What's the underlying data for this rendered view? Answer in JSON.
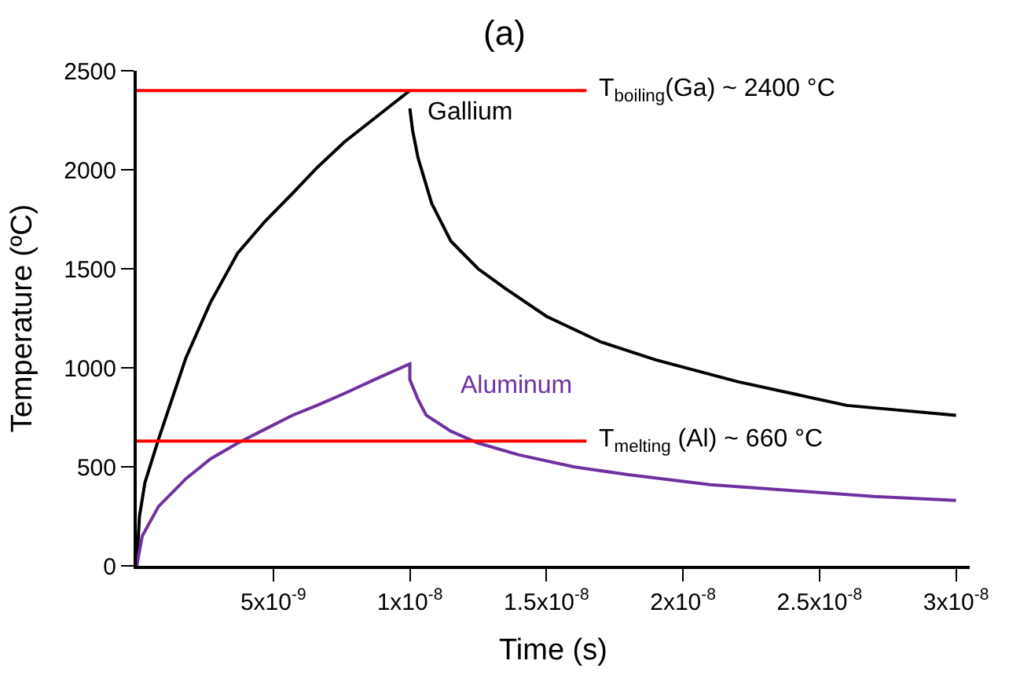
{
  "chart_data": {
    "type": "line",
    "title": "(a)",
    "xlabel": "Time (s)",
    "ylabel": "Temperature (ºC)",
    "xlim": [
      0,
      3.05e-08
    ],
    "xticks": [
      {
        "value": 5e-09,
        "label": "5x10$^{-9}$"
      },
      {
        "value": 1e-08,
        "label": "1x10$^{-8}$"
      },
      {
        "value": 1.5e-08,
        "label": "1.5x10$^{-8}$"
      },
      {
        "value": 2e-08,
        "label": "2x10$^{-8}$"
      },
      {
        "value": 2.5e-08,
        "label": "2.5x10$^{-8}$"
      },
      {
        "value": 3e-08,
        "label": "3x10$^{-8}$"
      }
    ],
    "ylim": [
      0,
      2500
    ],
    "yticks": [
      0,
      500,
      1000,
      1500,
      2000,
      2500
    ],
    "legend": false,
    "marker": "none",
    "line_style": "solid",
    "series": [
      {
        "name": "Gallium",
        "color": "#000000",
        "x": [
          0,
          1e-10,
          3e-10,
          8e-10,
          1.8e-09,
          2.7e-09,
          3.7e-09,
          4.7e-09,
          5.7e-09,
          6.6e-09,
          7.6e-09,
          8.8e-09,
          1e-08,
          null,
          1e-08,
          1.01e-08,
          1.03e-08,
          1.08e-08,
          1.15e-08,
          1.25e-08,
          1.35e-08,
          1.5e-08,
          1.7e-08,
          1.9e-08,
          2.2e-08,
          2.6e-08,
          3e-08
        ],
        "values": [
          0,
          250,
          420,
          640,
          1050,
          1330,
          1580,
          1740,
          1880,
          2010,
          2140,
          2270,
          2400,
          null,
          2310,
          2200,
          2060,
          1830,
          1640,
          1500,
          1400,
          1260,
          1130,
          1040,
          930,
          810,
          760
        ]
      },
      {
        "name": "Aluminum",
        "color": "#7030a0",
        "x": [
          0,
          2e-10,
          8e-10,
          1.8e-09,
          2.7e-09,
          3.7e-09,
          4.7e-09,
          5.7e-09,
          6.6e-09,
          7.6e-09,
          8.7e-09,
          1e-08,
          1e-08,
          1.03e-08,
          1.06e-08,
          1.15e-08,
          1.25e-08,
          1.4e-08,
          1.6e-08,
          1.8e-08,
          2.1e-08,
          2.4e-08,
          2.7e-08,
          3e-08
        ],
        "values": [
          0,
          150,
          300,
          440,
          540,
          620,
          690,
          760,
          810,
          870,
          940,
          1020,
          940,
          840,
          760,
          680,
          620,
          560,
          500,
          460,
          410,
          380,
          350,
          330
        ]
      }
    ],
    "ref_lines": [
      {
        "axis": "y",
        "value": 2400,
        "label": "T$_{boiling}$(Ga) ~ 2400 °C",
        "color": "#ff0000"
      },
      {
        "axis": "y",
        "value": 630,
        "label": "T$_{melting}$ (Al) ~ 660 °C",
        "color": "#ff0000"
      }
    ]
  }
}
